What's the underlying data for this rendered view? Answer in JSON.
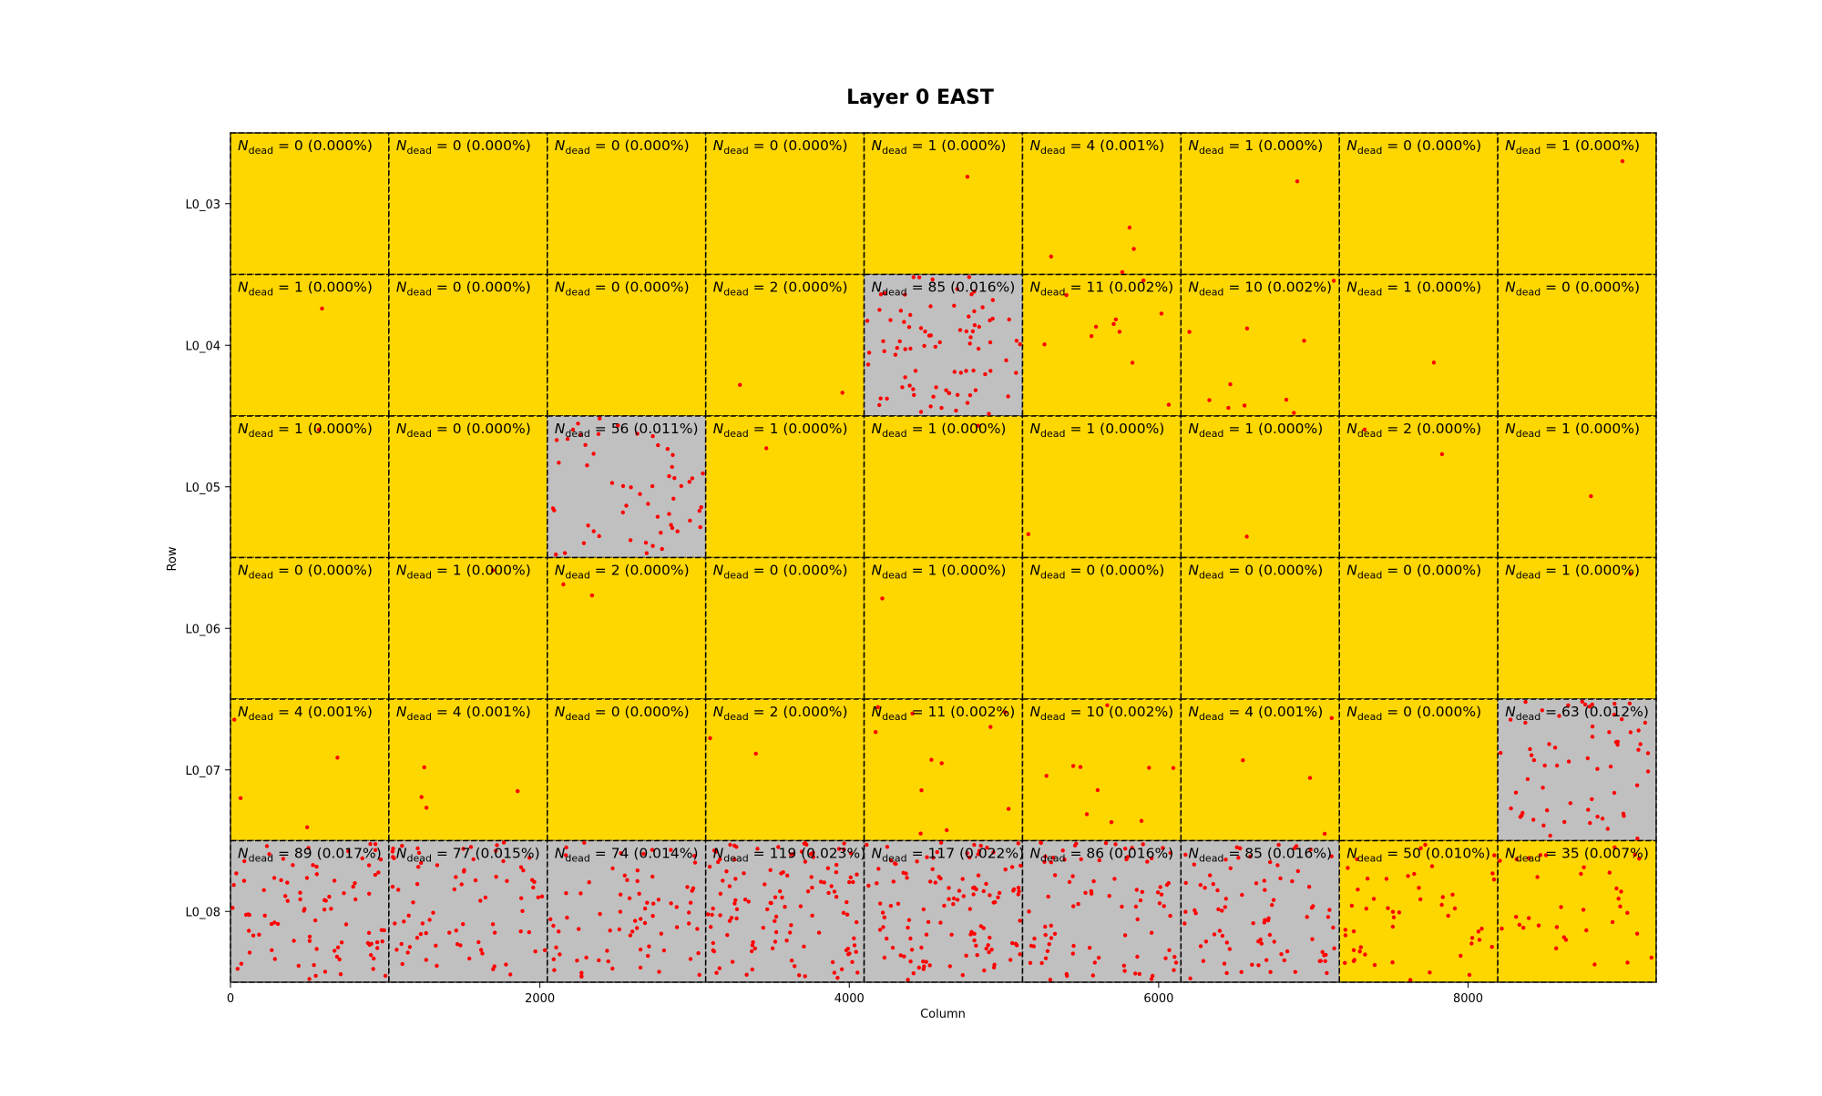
{
  "chart_data": {
    "type": "heatmap",
    "title": "Layer 0 EAST",
    "xlabel": "Column",
    "ylabel": "Row",
    "xlim": [
      0,
      9216
    ],
    "x_ticks": [
      {
        "value": 0,
        "label": "0"
      },
      {
        "value": 2000,
        "label": "2000"
      },
      {
        "value": 4000,
        "label": "4000"
      },
      {
        "value": 6000,
        "label": "6000"
      },
      {
        "value": 8000,
        "label": "8000"
      }
    ],
    "rows": [
      "L0_03",
      "L0_04",
      "L0_05",
      "L0_06",
      "L0_07",
      "L0_08"
    ],
    "label_prefix": "N",
    "label_subscript": "dead",
    "colors": {
      "ok": "#FFD700",
      "bad": "#C0C0C0",
      "point": "#FF0000"
    },
    "cells": [
      [
        {
          "n": 0,
          "pct": "0.000%",
          "status": "ok"
        },
        {
          "n": 0,
          "pct": "0.000%",
          "status": "ok"
        },
        {
          "n": 0,
          "pct": "0.000%",
          "status": "ok"
        },
        {
          "n": 0,
          "pct": "0.000%",
          "status": "ok"
        },
        {
          "n": 1,
          "pct": "0.000%",
          "status": "ok"
        },
        {
          "n": 4,
          "pct": "0.001%",
          "status": "ok"
        },
        {
          "n": 1,
          "pct": "0.000%",
          "status": "ok"
        },
        {
          "n": 0,
          "pct": "0.000%",
          "status": "ok"
        },
        {
          "n": 1,
          "pct": "0.000%",
          "status": "ok"
        }
      ],
      [
        {
          "n": 1,
          "pct": "0.000%",
          "status": "ok"
        },
        {
          "n": 0,
          "pct": "0.000%",
          "status": "ok"
        },
        {
          "n": 0,
          "pct": "0.000%",
          "status": "ok"
        },
        {
          "n": 2,
          "pct": "0.000%",
          "status": "ok"
        },
        {
          "n": 85,
          "pct": "0.016%",
          "status": "bad"
        },
        {
          "n": 11,
          "pct": "0.002%",
          "status": "ok"
        },
        {
          "n": 10,
          "pct": "0.002%",
          "status": "ok"
        },
        {
          "n": 1,
          "pct": "0.000%",
          "status": "ok"
        },
        {
          "n": 0,
          "pct": "0.000%",
          "status": "ok"
        }
      ],
      [
        {
          "n": 1,
          "pct": "0.000%",
          "status": "ok"
        },
        {
          "n": 0,
          "pct": "0.000%",
          "status": "ok"
        },
        {
          "n": 56,
          "pct": "0.011%",
          "status": "bad"
        },
        {
          "n": 1,
          "pct": "0.000%",
          "status": "ok"
        },
        {
          "n": 1,
          "pct": "0.000%",
          "status": "ok"
        },
        {
          "n": 1,
          "pct": "0.000%",
          "status": "ok"
        },
        {
          "n": 1,
          "pct": "0.000%",
          "status": "ok"
        },
        {
          "n": 2,
          "pct": "0.000%",
          "status": "ok"
        },
        {
          "n": 1,
          "pct": "0.000%",
          "status": "ok"
        }
      ],
      [
        {
          "n": 0,
          "pct": "0.000%",
          "status": "ok"
        },
        {
          "n": 1,
          "pct": "0.000%",
          "status": "ok"
        },
        {
          "n": 2,
          "pct": "0.000%",
          "status": "ok"
        },
        {
          "n": 0,
          "pct": "0.000%",
          "status": "ok"
        },
        {
          "n": 1,
          "pct": "0.000%",
          "status": "ok"
        },
        {
          "n": 0,
          "pct": "0.000%",
          "status": "ok"
        },
        {
          "n": 0,
          "pct": "0.000%",
          "status": "ok"
        },
        {
          "n": 0,
          "pct": "0.000%",
          "status": "ok"
        },
        {
          "n": 1,
          "pct": "0.000%",
          "status": "ok"
        }
      ],
      [
        {
          "n": 4,
          "pct": "0.001%",
          "status": "ok"
        },
        {
          "n": 4,
          "pct": "0.001%",
          "status": "ok"
        },
        {
          "n": 0,
          "pct": "0.000%",
          "status": "ok"
        },
        {
          "n": 2,
          "pct": "0.000%",
          "status": "ok"
        },
        {
          "n": 11,
          "pct": "0.002%",
          "status": "ok"
        },
        {
          "n": 10,
          "pct": "0.002%",
          "status": "ok"
        },
        {
          "n": 4,
          "pct": "0.001%",
          "status": "ok"
        },
        {
          "n": 0,
          "pct": "0.000%",
          "status": "ok"
        },
        {
          "n": 63,
          "pct": "0.012%",
          "status": "bad"
        }
      ],
      [
        {
          "n": 89,
          "pct": "0.017%",
          "status": "bad"
        },
        {
          "n": 77,
          "pct": "0.015%",
          "status": "bad"
        },
        {
          "n": 74,
          "pct": "0.014%",
          "status": "bad"
        },
        {
          "n": 119,
          "pct": "0.023%",
          "status": "bad"
        },
        {
          "n": 117,
          "pct": "0.022%",
          "status": "bad"
        },
        {
          "n": 86,
          "pct": "0.016%",
          "status": "bad"
        },
        {
          "n": 85,
          "pct": "0.016%",
          "status": "bad"
        },
        {
          "n": 50,
          "pct": "0.010%",
          "status": "ok"
        },
        {
          "n": 35,
          "pct": "0.007%",
          "status": "ok"
        }
      ]
    ]
  }
}
